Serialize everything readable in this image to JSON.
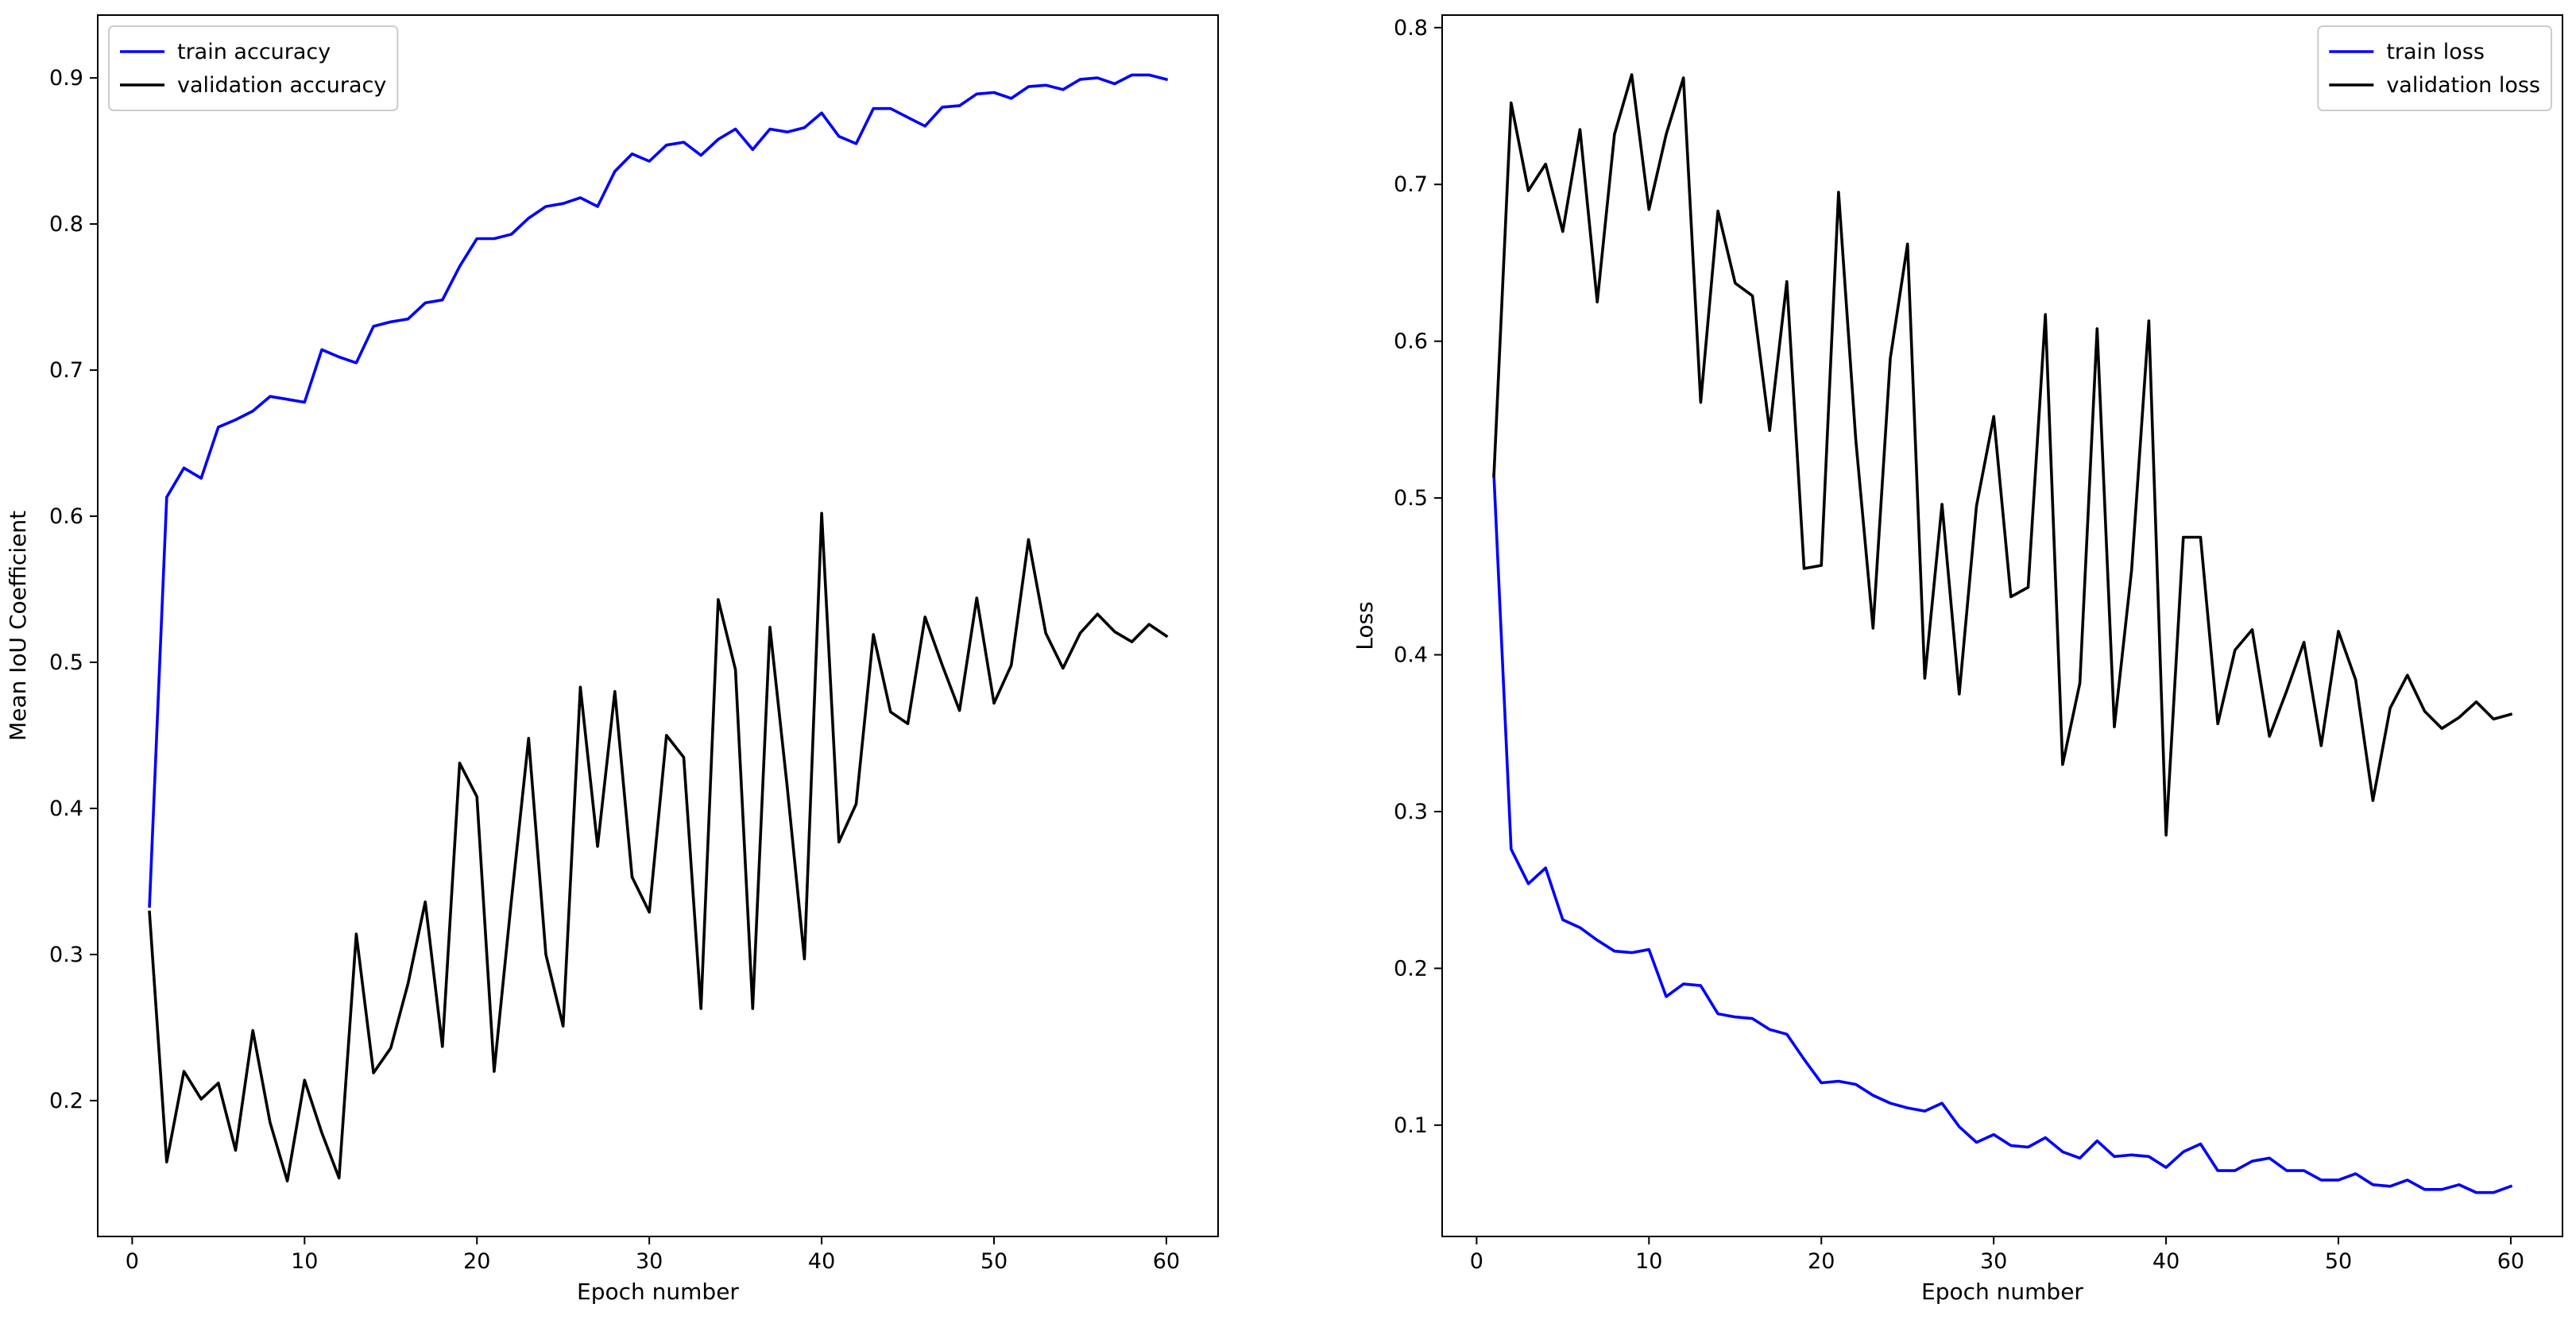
{
  "chart_data": [
    {
      "type": "line",
      "xlabel": "Epoch number",
      "ylabel": "Mean IoU Coefficient",
      "xlim": [
        -2,
        63
      ],
      "ylim": [
        0.107,
        0.943
      ],
      "xticks": [
        0,
        10,
        20,
        30,
        40,
        50,
        60
      ],
      "yticks": [
        0.2,
        0.3,
        0.4,
        0.5,
        0.6,
        0.7,
        0.8,
        0.9
      ],
      "ytick_labels": [
        "0.2",
        "0.3",
        "0.4",
        "0.5",
        "0.6",
        "0.7",
        "0.8",
        "0.9"
      ],
      "legend_position": "top-left",
      "grid": false,
      "x": [
        1,
        2,
        3,
        4,
        5,
        6,
        7,
        8,
        9,
        10,
        11,
        12,
        13,
        14,
        15,
        16,
        17,
        18,
        19,
        20,
        21,
        22,
        23,
        24,
        25,
        26,
        27,
        28,
        29,
        30,
        31,
        32,
        33,
        34,
        35,
        36,
        37,
        38,
        39,
        40,
        41,
        42,
        43,
        44,
        45,
        46,
        47,
        48,
        49,
        50,
        51,
        52,
        53,
        54,
        55,
        56,
        57,
        58,
        59,
        60
      ],
      "series": [
        {
          "name": "train accuracy",
          "color": "#0000ff",
          "values": [
            0.333,
            0.613,
            0.633,
            0.626,
            0.661,
            0.666,
            0.672,
            0.682,
            0.68,
            0.678,
            0.714,
            0.709,
            0.705,
            0.73,
            0.733,
            0.735,
            0.746,
            0.748,
            0.771,
            0.79,
            0.79,
            0.793,
            0.804,
            0.812,
            0.814,
            0.818,
            0.812,
            0.836,
            0.848,
            0.843,
            0.854,
            0.856,
            0.847,
            0.858,
            0.865,
            0.851,
            0.865,
            0.863,
            0.866,
            0.876,
            0.86,
            0.855,
            0.879,
            0.879,
            0.873,
            0.867,
            0.88,
            0.881,
            0.889,
            0.89,
            0.886,
            0.894,
            0.895,
            0.892,
            0.899,
            0.9,
            0.896,
            0.902,
            0.902,
            0.899
          ]
        },
        {
          "name": "validation accuracy",
          "color": "#000000",
          "values": [
            0.329,
            0.158,
            0.22,
            0.201,
            0.212,
            0.166,
            0.248,
            0.185,
            0.145,
            0.214,
            0.178,
            0.147,
            0.314,
            0.219,
            0.236,
            0.28,
            0.336,
            0.237,
            0.431,
            0.408,
            0.22,
            0.337,
            0.448,
            0.3,
            0.251,
            0.483,
            0.374,
            0.48,
            0.353,
            0.329,
            0.45,
            0.435,
            0.263,
            0.543,
            0.495,
            0.263,
            0.524,
            0.415,
            0.297,
            0.602,
            0.377,
            0.403,
            0.519,
            0.466,
            0.458,
            0.531,
            0.498,
            0.467,
            0.544,
            0.472,
            0.498,
            0.584,
            0.52,
            0.496,
            0.52,
            0.533,
            0.521,
            0.514,
            0.526,
            0.518
          ]
        }
      ]
    },
    {
      "type": "line",
      "xlabel": "Epoch number",
      "ylabel": "Loss",
      "xlim": [
        -2,
        63
      ],
      "ylim": [
        0.029,
        0.808
      ],
      "xticks": [
        0,
        10,
        20,
        30,
        40,
        50,
        60
      ],
      "yticks": [
        0.1,
        0.2,
        0.3,
        0.4,
        0.5,
        0.6,
        0.7,
        0.8
      ],
      "ytick_labels": [
        "0.1",
        "0.2",
        "0.3",
        "0.4",
        "0.5",
        "0.6",
        "0.7",
        "0.8"
      ],
      "legend_position": "top-right",
      "grid": false,
      "x": [
        1,
        2,
        3,
        4,
        5,
        6,
        7,
        8,
        9,
        10,
        11,
        12,
        13,
        14,
        15,
        16,
        17,
        18,
        19,
        20,
        21,
        22,
        23,
        24,
        25,
        26,
        27,
        28,
        29,
        30,
        31,
        32,
        33,
        34,
        35,
        36,
        37,
        38,
        39,
        40,
        41,
        42,
        43,
        44,
        45,
        46,
        47,
        48,
        49,
        50,
        51,
        52,
        53,
        54,
        55,
        56,
        57,
        58,
        59,
        60
      ],
      "series": [
        {
          "name": "train loss",
          "color": "#0000ff",
          "values": [
            0.515,
            0.276,
            0.254,
            0.264,
            0.231,
            0.226,
            0.218,
            0.211,
            0.21,
            0.212,
            0.182,
            0.19,
            0.189,
            0.171,
            0.169,
            0.168,
            0.161,
            0.158,
            0.142,
            0.127,
            0.128,
            0.126,
            0.119,
            0.114,
            0.111,
            0.109,
            0.114,
            0.099,
            0.089,
            0.094,
            0.087,
            0.086,
            0.092,
            0.083,
            0.079,
            0.09,
            0.08,
            0.081,
            0.08,
            0.073,
            0.083,
            0.088,
            0.071,
            0.071,
            0.077,
            0.079,
            0.071,
            0.071,
            0.065,
            0.065,
            0.069,
            0.062,
            0.061,
            0.065,
            0.059,
            0.059,
            0.062,
            0.057,
            0.057,
            0.061
          ]
        },
        {
          "name": "validation loss",
          "color": "#000000",
          "values": [
            0.514,
            0.752,
            0.696,
            0.713,
            0.67,
            0.735,
            0.625,
            0.732,
            0.77,
            0.684,
            0.732,
            0.768,
            0.561,
            0.683,
            0.637,
            0.629,
            0.543,
            0.638,
            0.455,
            0.457,
            0.695,
            0.537,
            0.417,
            0.589,
            0.662,
            0.385,
            0.496,
            0.375,
            0.495,
            0.552,
            0.437,
            0.443,
            0.617,
            0.33,
            0.382,
            0.608,
            0.354,
            0.454,
            0.613,
            0.285,
            0.475,
            0.475,
            0.356,
            0.403,
            0.416,
            0.348,
            0.377,
            0.408,
            0.342,
            0.415,
            0.384,
            0.307,
            0.366,
            0.387,
            0.364,
            0.353,
            0.36,
            0.37,
            0.359,
            0.362
          ]
        }
      ]
    }
  ]
}
